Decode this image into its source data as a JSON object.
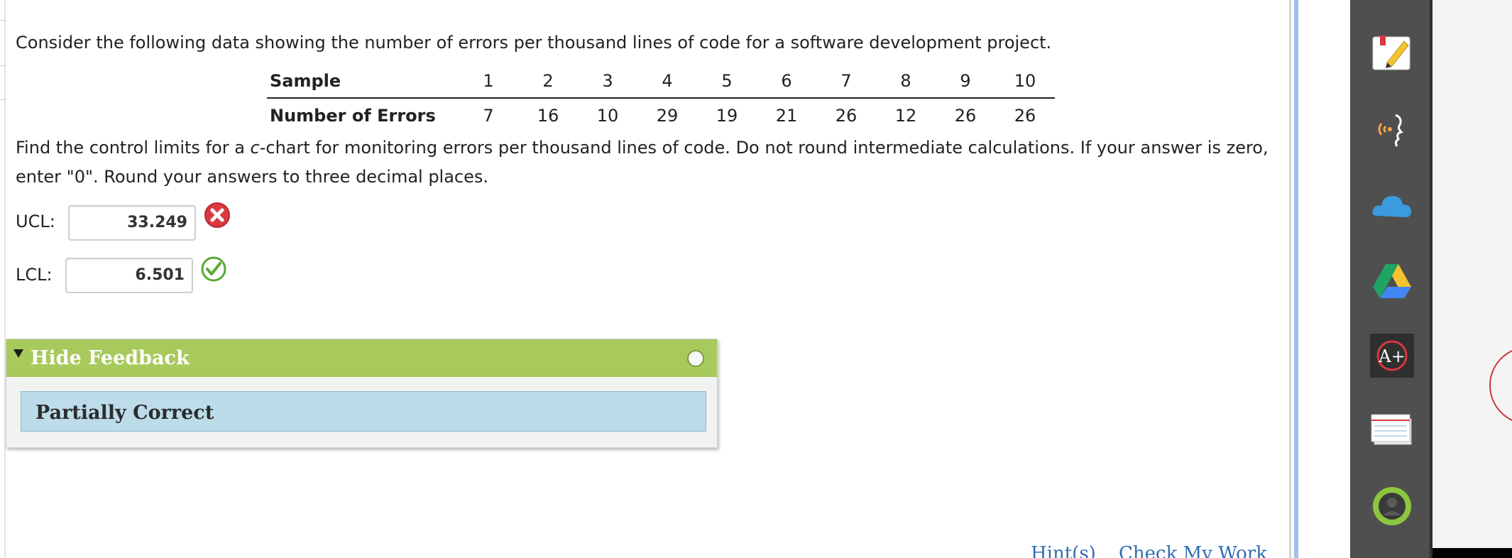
{
  "question": {
    "intro": "Consider the following data showing the number of errors per thousand lines of code for a software development project.",
    "instruction_part1": "Find the control limits for a ",
    "instruction_italic": "c",
    "instruction_part2": "-chart for monitoring errors per thousand lines of code. Do not round intermediate calculations. If your answer is zero,",
    "instruction_line2": "enter \"0\". Round your answers to three decimal places."
  },
  "table": {
    "header_label": "Sample",
    "samples": [
      "1",
      "2",
      "3",
      "4",
      "5",
      "6",
      "7",
      "8",
      "9",
      "10"
    ],
    "row_label": "Number of Errors",
    "errors": [
      "7",
      "16",
      "10",
      "29",
      "19",
      "21",
      "26",
      "12",
      "26",
      "26"
    ]
  },
  "answers": {
    "ucl": {
      "label": "UCL:",
      "value": "33.249",
      "status": "incorrect",
      "icon": "incorrect-x-icon",
      "color": "#d9393f"
    },
    "lcl": {
      "label": "LCL:",
      "value": "6.501",
      "status": "correct",
      "icon": "correct-check-icon",
      "color": "#5aa832"
    }
  },
  "feedback": {
    "toggle_label": "Hide Feedback",
    "status": "Partially Correct",
    "header_color": "#a8c95c",
    "body_color": "#bcdcea"
  },
  "links": {
    "hints": "Hint(s)",
    "check": "Check My Work"
  },
  "tools": [
    {
      "name": "notepad-icon"
    },
    {
      "name": "read-aloud-icon"
    },
    {
      "name": "onedrive-icon"
    },
    {
      "name": "google-drive-icon"
    },
    {
      "name": "grade-badge-icon"
    },
    {
      "name": "flashcards-icon"
    },
    {
      "name": "profile-ring-icon"
    }
  ]
}
